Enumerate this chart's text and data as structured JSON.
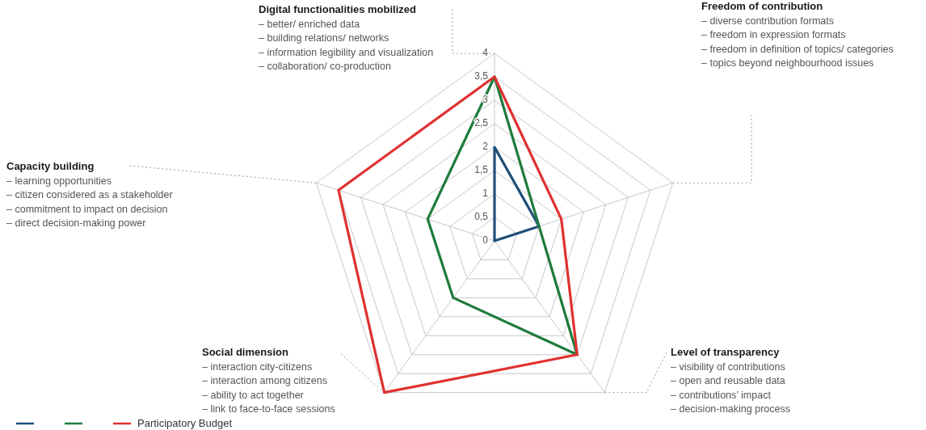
{
  "chart_data": {
    "type": "radar",
    "categories": [
      "Digital functionalities mobilized",
      "Freedom of contribution",
      "Level of transparency",
      "Social dimension",
      "Capacity building"
    ],
    "series": [
      {
        "color": "#1f4e79",
        "values": [
          2,
          1,
          0,
          0,
          0
        ]
      },
      {
        "color": "#1e7b3c",
        "values": [
          3.5,
          1,
          3,
          1.5,
          1.5
        ]
      },
      {
        "name": "Participatory  Budget",
        "color": "#e03030",
        "values": [
          3.5,
          1.5,
          3,
          4,
          3.5
        ]
      }
    ],
    "ylim": [
      0,
      4
    ],
    "yticks": [
      0,
      {
        "value": 0.5,
        "label": "0,5"
      },
      1,
      {
        "value": 1.5,
        "label": "1,5"
      },
      2,
      {
        "value": 2.5,
        "label": "2,5"
      },
      3,
      {
        "value": 3.5,
        "label": "3,5"
      },
      4
    ],
    "grid": true,
    "legend": "bottom left",
    "annotations": [
      "– better/ enriched data\n– building relations/ networks\n– information legibility and visualization\n– collaboration/ co-production",
      "– diverse contribution formats\n– freedom in expression formats\n– freedom in definition of topics/ categories\n– topics beyond neighbourhood issues",
      "– visibility of contributions\n– open and reusable data\n– contributions’ impact\n– decision-making process",
      "– interaction city-citizens\n– interaction among citizens\n– ability to act together\n– link to face-to-face sessions",
      "– learning opportunities\n– citizen considered as a stakeholder\n– commitment to impact on decision\n– direct decision-making power"
    ]
  }
}
